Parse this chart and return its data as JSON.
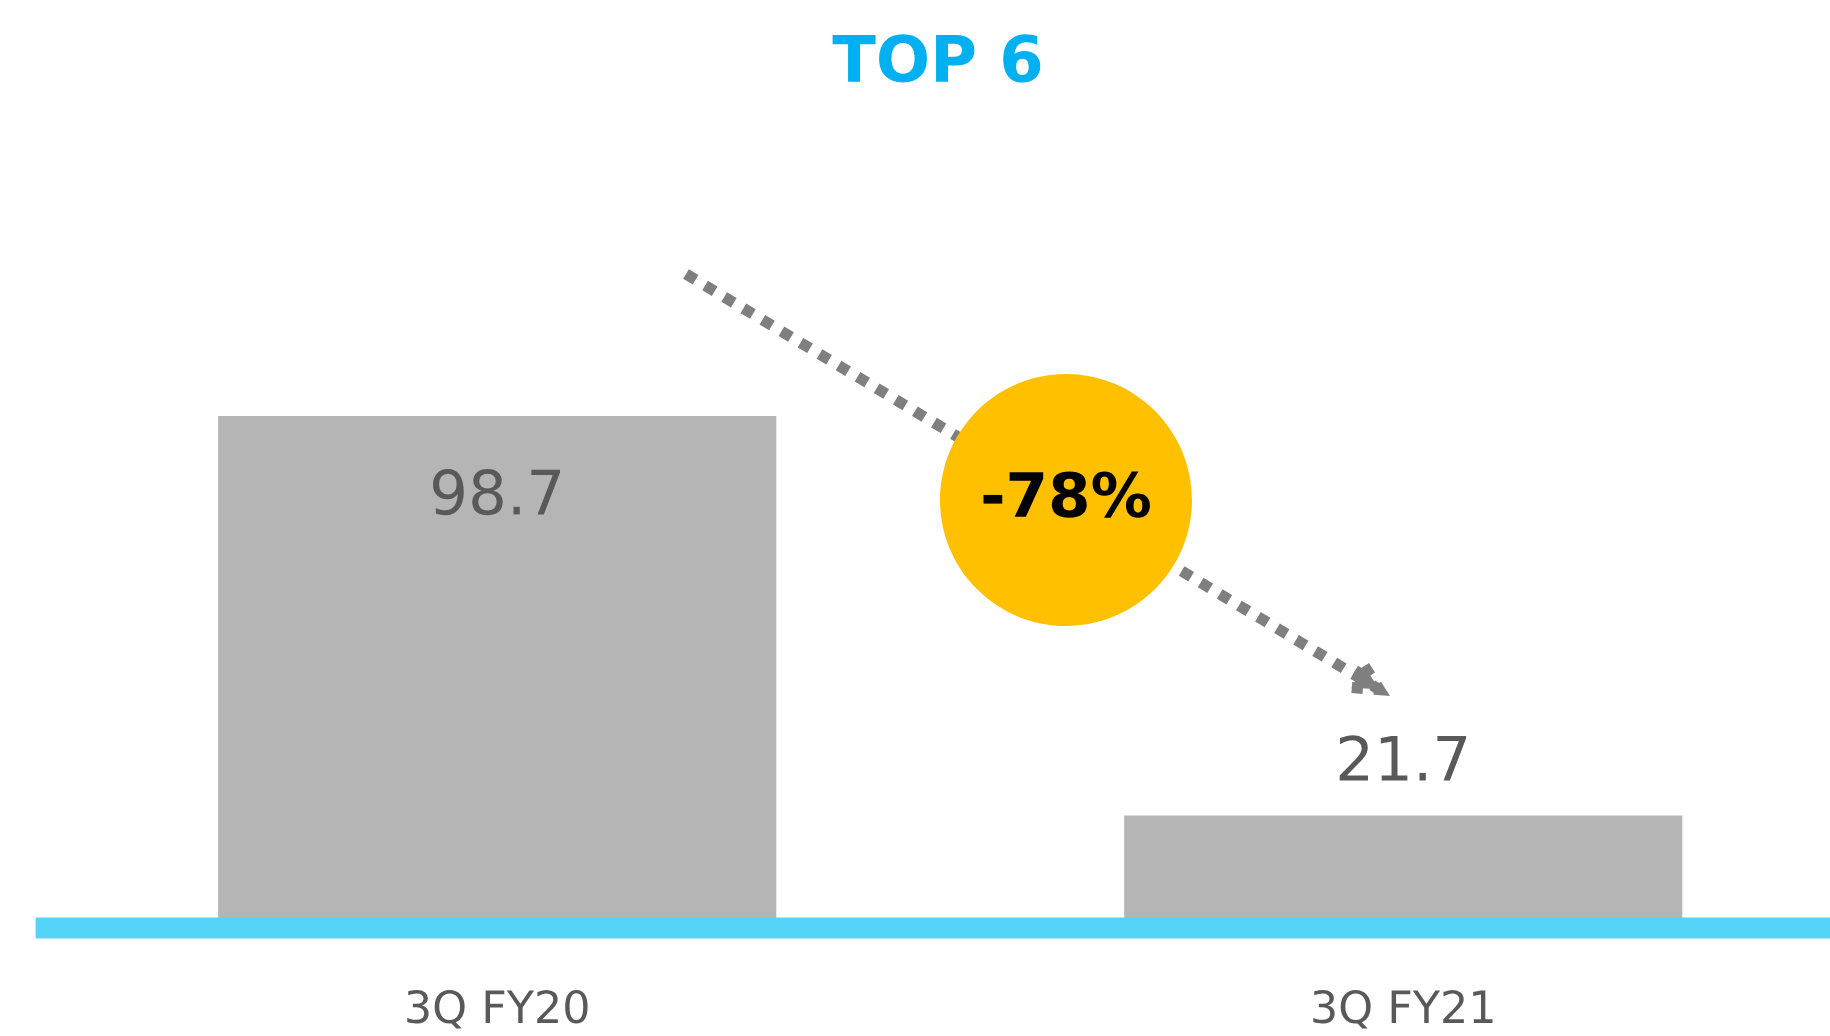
{
  "chart_data": {
    "type": "bar",
    "title": "TOP 6",
    "categories": [
      "3Q FY20",
      "3Q FY21"
    ],
    "values": [
      98.7,
      21.7
    ],
    "color": "#b5b5b5",
    "data_labels": true,
    "grid": false,
    "legend": false,
    "annotations": [
      "-78%"
    ]
  }
}
